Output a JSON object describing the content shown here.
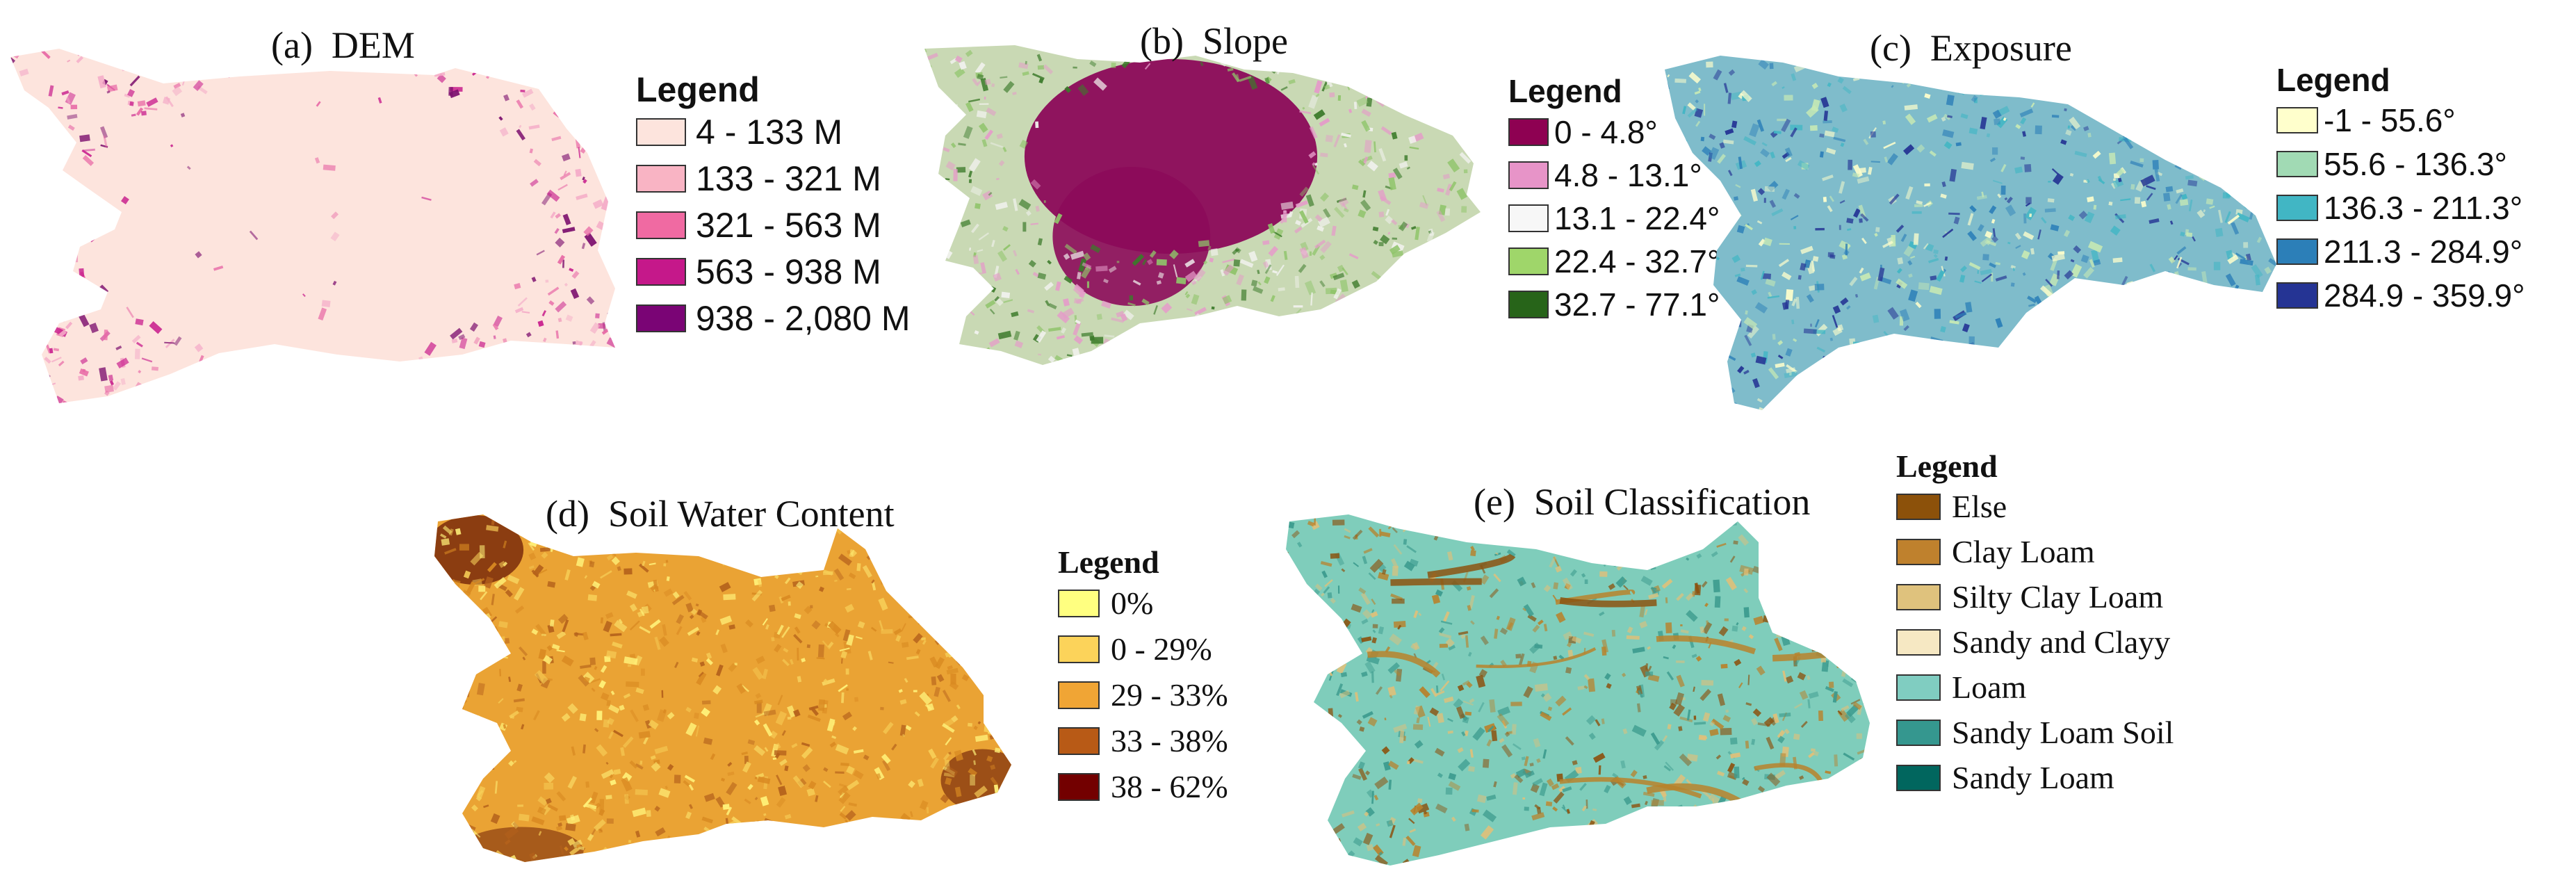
{
  "figure": {
    "panels": [
      {
        "id": "dem",
        "title": "(a)  DEM",
        "legend_title": "Legend",
        "legend_font": "sans",
        "base_color": "#fde4dd",
        "texture_colors": [
          "#f4a9c7",
          "#e86aa6",
          "#c81d8c",
          "#7c0f6e"
        ],
        "legend": [
          {
            "label": "4 - 133 M",
            "color": "#fde4dd"
          },
          {
            "label": "133 - 321 M",
            "color": "#f9b4c4"
          },
          {
            "label": "321 - 563 M",
            "color": "#f06aa2"
          },
          {
            "label": "563 - 938 M",
            "color": "#c5188a"
          },
          {
            "label": "938 - 2,080 M",
            "color": "#7a0475"
          }
        ]
      },
      {
        "id": "slope",
        "title": "(b)  Slope",
        "legend_title": "Legend",
        "legend_font": "sans",
        "base_color": "#c9d9b4",
        "texture_colors": [
          "#8fc46a",
          "#e59bc9",
          "#f2f2ef",
          "#3b7a2a"
        ],
        "core_color": "#8c0a5a",
        "legend": [
          {
            "label": "0 - 4.8°",
            "color": "#8e0152"
          },
          {
            "label": "4.8 - 13.1°",
            "color": "#e794c8"
          },
          {
            "label": "13.1 - 22.4°",
            "color": "#f7f7f7"
          },
          {
            "label": "22.4 - 32.7°",
            "color": "#9fd66a"
          },
          {
            "label": "32.7 - 77.1°",
            "color": "#276419"
          }
        ]
      },
      {
        "id": "exposure",
        "title": "(c)  Exposure",
        "legend_title": "Legend",
        "legend_font": "sans",
        "base_color": "#7fbccb",
        "texture_colors": [
          "#2c7fb8",
          "#41b6c4",
          "#c7e9b4",
          "#253494",
          "#ffffcc"
        ],
        "legend": [
          {
            "label": "-1 - 55.6°",
            "color": "#ffffcc"
          },
          {
            "label": "55.6 - 136.3°",
            "color": "#a1dab4"
          },
          {
            "label": "136.3 - 211.3°",
            "color": "#41b6c4"
          },
          {
            "label": "211.3 - 284.9°",
            "color": "#2c7fb8"
          },
          {
            "label": "284.9 - 359.9°",
            "color": "#253494"
          }
        ]
      },
      {
        "id": "soil-water",
        "title": "(d)  Soil Water Content",
        "legend_title": "Legend",
        "legend_font": "serif",
        "base_color": "#eaa334",
        "texture_colors": [
          "#f7cf58",
          "#b5621c",
          "#d98a22",
          "#fff27a"
        ],
        "edge_color": "#7a2b0c",
        "legend": [
          {
            "label": "0%",
            "color": "#ffff80"
          },
          {
            "label": "0 - 29%",
            "color": "#fcd35a"
          },
          {
            "label": "29 - 33%",
            "color": "#f0a535"
          },
          {
            "label": "33 - 38%",
            "color": "#b85a16"
          },
          {
            "label": "38 - 62%",
            "color": "#730000"
          }
        ]
      },
      {
        "id": "soil-classification",
        "title": "(e)  Soil Classification",
        "legend_title": "Legend",
        "legend_font": "serif",
        "base_color": "#7fcdbb",
        "texture_colors": [
          "#b8822c",
          "#8c5310",
          "#dfc07a",
          "#3d9b8e"
        ],
        "legend": [
          {
            "label": "Else",
            "color": "#8c510a"
          },
          {
            "label": "Clay Loam",
            "color": "#bf812d"
          },
          {
            "label": "Silty Clay Loam",
            "color": "#dfc27d"
          },
          {
            "label": "Sandy and Clayy",
            "color": "#f6e8c3"
          },
          {
            "label": "Loam",
            "color": "#80cdc1"
          },
          {
            "label": "Sandy Loam Soil",
            "color": "#35978f"
          },
          {
            "label": "Sandy Loam",
            "color": "#01665e"
          }
        ]
      }
    ]
  }
}
